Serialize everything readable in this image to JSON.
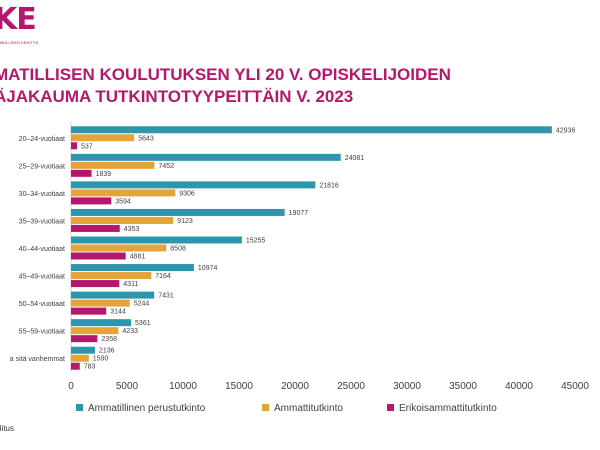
{
  "logo": {
    "text": "KE",
    "subtitle": "MULLISEN KEHITYS"
  },
  "title": {
    "line1": "MATILLISEN KOULUTUKSEN YLI 20 V. OPISKELIJOIDEN",
    "line2": "ÄJAKAUMA TUTKINTOTYYPEITTÄIN V. 2023"
  },
  "footer": "llitus",
  "colors": {
    "Ammatillinen perustutkinto": "#2e96ac",
    "Ammattitutkinto": "#e5a43a",
    "Erikoisammattitutkinto": "#b5176e"
  },
  "chart_data": {
    "type": "bar",
    "orientation": "horizontal",
    "categories": [
      "20–24-vuotiaat",
      "25–29-vuotiaat",
      "30–34-vuotiaat",
      "35–39-vuotiaat",
      "40–44-vuotiaat",
      "45–49-vuotiaat",
      "50–54-vuotiaat",
      "55–59-vuotiaat",
      "a sitä vanhemmat"
    ],
    "series": [
      {
        "name": "Ammatillinen perustutkinto",
        "values": [
          42936,
          24081,
          21816,
          19077,
          15255,
          10974,
          7431,
          5361,
          2136
        ]
      },
      {
        "name": "Ammattitutkinto",
        "values": [
          5643,
          7452,
          9306,
          9123,
          8508,
          7164,
          5244,
          4233,
          1590
        ]
      },
      {
        "name": "Erikoisammattitutkinto",
        "values": [
          537,
          1839,
          3594,
          4353,
          4881,
          4311,
          3144,
          2358,
          783
        ]
      }
    ],
    "xlim": [
      0,
      45000
    ],
    "xticks": [
      0,
      5000,
      10000,
      15000,
      20000,
      25000,
      30000,
      35000,
      40000,
      45000
    ],
    "grid": false,
    "legend": "bottom"
  }
}
